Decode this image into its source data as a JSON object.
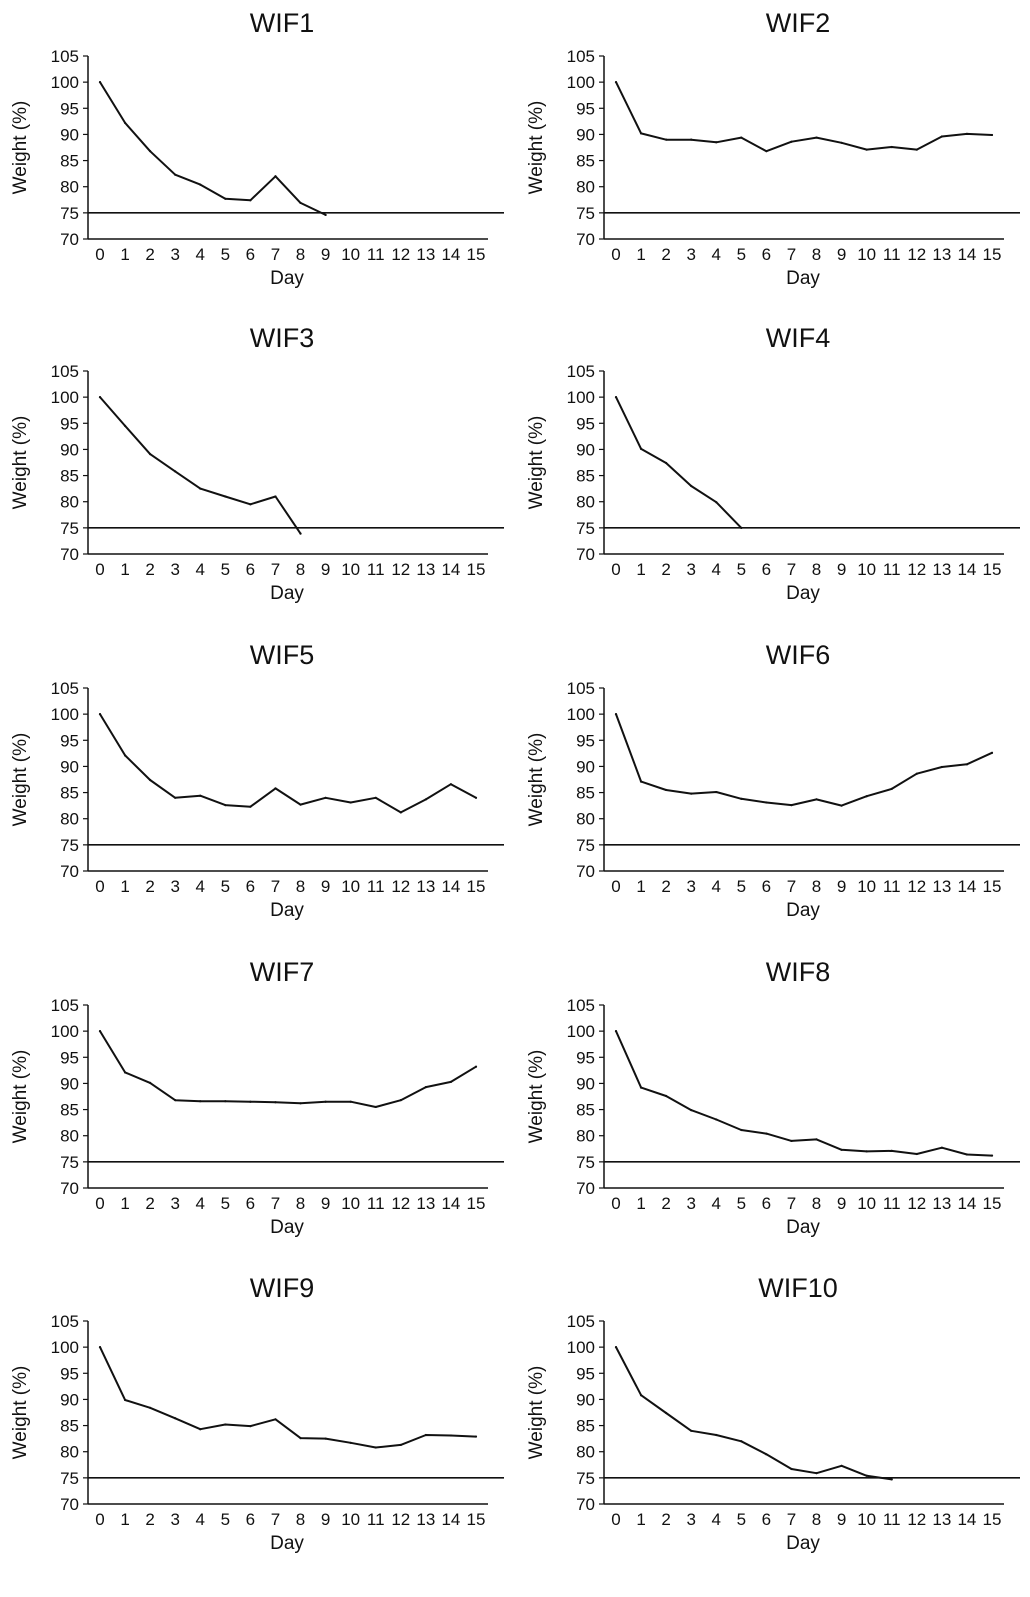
{
  "chart_data": [
    {
      "type": "line",
      "title": "WIF1",
      "xlabel": "Day",
      "ylabel": "Weight (%)",
      "x": [
        0,
        1,
        2,
        3,
        4,
        5,
        6,
        7,
        8,
        9
      ],
      "series": [
        {
          "values": [
            100,
            92.2,
            86.8,
            82.3,
            80.4,
            77.7,
            77.4,
            82,
            76.9,
            74.6
          ]
        }
      ],
      "reference_line": 75,
      "xticks": [
        0,
        1,
        2,
        3,
        4,
        5,
        6,
        7,
        8,
        9,
        10,
        11,
        12,
        13,
        14,
        15
      ],
      "yticks": [
        70,
        75,
        80,
        85,
        90,
        95,
        100,
        105
      ],
      "xlim": [
        0,
        15
      ],
      "ylim": [
        70,
        105
      ],
      "grid": false,
      "line_color": "#111111"
    },
    {
      "type": "line",
      "title": "WIF2",
      "xlabel": "Day",
      "ylabel": "Weight (%)",
      "x": [
        0,
        1,
        2,
        3,
        4,
        5,
        6,
        7,
        8,
        9,
        10,
        11,
        12,
        13,
        14,
        15
      ],
      "series": [
        {
          "values": [
            100,
            90.2,
            89,
            89,
            88.5,
            89.4,
            86.8,
            88.6,
            89.4,
            88.4,
            87.1,
            87.6,
            87.1,
            89.6,
            90.1,
            89.9
          ]
        }
      ],
      "reference_line": 75,
      "xticks": [
        0,
        1,
        2,
        3,
        4,
        5,
        6,
        7,
        8,
        9,
        10,
        11,
        12,
        13,
        14,
        15
      ],
      "yticks": [
        70,
        75,
        80,
        85,
        90,
        95,
        100,
        105
      ],
      "xlim": [
        0,
        15
      ],
      "ylim": [
        70,
        105
      ],
      "grid": false,
      "line_color": "#111111"
    },
    {
      "type": "line",
      "title": "WIF3",
      "xlabel": "Day",
      "ylabel": "Weight (%)",
      "x": [
        0,
        1,
        2,
        3,
        4,
        5,
        6,
        7,
        8
      ],
      "series": [
        {
          "values": [
            100,
            94.5,
            89.1,
            85.8,
            82.5,
            81,
            79.5,
            81,
            73.9
          ]
        }
      ],
      "reference_line": 75,
      "xticks": [
        0,
        1,
        2,
        3,
        4,
        5,
        6,
        7,
        8,
        9,
        10,
        11,
        12,
        13,
        14,
        15
      ],
      "yticks": [
        70,
        75,
        80,
        85,
        90,
        95,
        100,
        105
      ],
      "xlim": [
        0,
        15
      ],
      "ylim": [
        70,
        105
      ],
      "grid": false,
      "line_color": "#111111"
    },
    {
      "type": "line",
      "title": "WIF4",
      "xlabel": "Day",
      "ylabel": "Weight (%)",
      "x": [
        0,
        1,
        2,
        3,
        4,
        5
      ],
      "series": [
        {
          "values": [
            100,
            90.1,
            87.4,
            83,
            79.9,
            75
          ]
        }
      ],
      "reference_line": 75,
      "xticks": [
        0,
        1,
        2,
        3,
        4,
        5,
        6,
        7,
        8,
        9,
        10,
        11,
        12,
        13,
        14,
        15
      ],
      "yticks": [
        70,
        75,
        80,
        85,
        90,
        95,
        100,
        105
      ],
      "xlim": [
        0,
        15
      ],
      "ylim": [
        70,
        105
      ],
      "grid": false,
      "line_color": "#111111"
    },
    {
      "type": "line",
      "title": "WIF5",
      "xlabel": "Day",
      "ylabel": "Weight (%)",
      "x": [
        0,
        1,
        2,
        3,
        4,
        5,
        6,
        7,
        8,
        9,
        10,
        11,
        12,
        13,
        14,
        15
      ],
      "series": [
        {
          "values": [
            100,
            92.1,
            87.4,
            84,
            84.4,
            82.6,
            82.3,
            85.8,
            82.7,
            84,
            83.1,
            84,
            81.2,
            83.7,
            86.6,
            84
          ]
        }
      ],
      "reference_line": 75,
      "xticks": [
        0,
        1,
        2,
        3,
        4,
        5,
        6,
        7,
        8,
        9,
        10,
        11,
        12,
        13,
        14,
        15
      ],
      "yticks": [
        70,
        75,
        80,
        85,
        90,
        95,
        100,
        105
      ],
      "xlim": [
        0,
        15
      ],
      "ylim": [
        70,
        105
      ],
      "grid": false,
      "line_color": "#111111"
    },
    {
      "type": "line",
      "title": "WIF6",
      "xlabel": "Day",
      "ylabel": "Weight (%)",
      "x": [
        0,
        1,
        2,
        3,
        4,
        5,
        6,
        7,
        8,
        9,
        10,
        11,
        12,
        13,
        14,
        15
      ],
      "series": [
        {
          "values": [
            100,
            87.1,
            85.5,
            84.8,
            85.1,
            83.8,
            83.1,
            82.6,
            83.7,
            82.5,
            84.3,
            85.7,
            88.6,
            89.9,
            90.4,
            92.6
          ]
        }
      ],
      "reference_line": 75,
      "xticks": [
        0,
        1,
        2,
        3,
        4,
        5,
        6,
        7,
        8,
        9,
        10,
        11,
        12,
        13,
        14,
        15
      ],
      "yticks": [
        70,
        75,
        80,
        85,
        90,
        95,
        100,
        105
      ],
      "xlim": [
        0,
        15
      ],
      "ylim": [
        70,
        105
      ],
      "grid": false,
      "line_color": "#111111"
    },
    {
      "type": "line",
      "title": "WIF7",
      "xlabel": "Day",
      "ylabel": "Weight (%)",
      "x": [
        0,
        1,
        2,
        3,
        4,
        5,
        6,
        7,
        8,
        9,
        10,
        11,
        12,
        13,
        14,
        15
      ],
      "series": [
        {
          "values": [
            100,
            92.1,
            90.1,
            86.8,
            86.6,
            86.6,
            86.5,
            86.4,
            86.2,
            86.5,
            86.5,
            85.5,
            86.8,
            89.3,
            90.3,
            93.2
          ]
        }
      ],
      "reference_line": 75,
      "xticks": [
        0,
        1,
        2,
        3,
        4,
        5,
        6,
        7,
        8,
        9,
        10,
        11,
        12,
        13,
        14,
        15
      ],
      "yticks": [
        70,
        75,
        80,
        85,
        90,
        95,
        100,
        105
      ],
      "xlim": [
        0,
        15
      ],
      "ylim": [
        70,
        105
      ],
      "grid": false,
      "line_color": "#111111"
    },
    {
      "type": "line",
      "title": "WIF8",
      "xlabel": "Day",
      "ylabel": "Weight (%)",
      "x": [
        0,
        1,
        2,
        3,
        4,
        5,
        6,
        7,
        8,
        9,
        10,
        11,
        12,
        13,
        14,
        15
      ],
      "series": [
        {
          "values": [
            100,
            89.2,
            87.6,
            84.9,
            83.1,
            81.1,
            80.4,
            79,
            79.3,
            77.3,
            77,
            77.1,
            76.5,
            77.7,
            76.4,
            76.2
          ]
        }
      ],
      "reference_line": 75,
      "xticks": [
        0,
        1,
        2,
        3,
        4,
        5,
        6,
        7,
        8,
        9,
        10,
        11,
        12,
        13,
        14,
        15
      ],
      "yticks": [
        70,
        75,
        80,
        85,
        90,
        95,
        100,
        105
      ],
      "xlim": [
        0,
        15
      ],
      "ylim": [
        70,
        105
      ],
      "grid": false,
      "line_color": "#111111"
    },
    {
      "type": "line",
      "title": "WIF9",
      "xlabel": "Day",
      "ylabel": "Weight (%)",
      "x": [
        0,
        1,
        2,
        3,
        4,
        5,
        6,
        7,
        8,
        9,
        10,
        11,
        12,
        13,
        14,
        15
      ],
      "series": [
        {
          "values": [
            100,
            89.9,
            88.4,
            86.4,
            84.3,
            85.2,
            84.9,
            86.2,
            82.6,
            82.5,
            81.7,
            80.8,
            81.3,
            83.2,
            83.1,
            82.9
          ]
        }
      ],
      "reference_line": 75,
      "xticks": [
        0,
        1,
        2,
        3,
        4,
        5,
        6,
        7,
        8,
        9,
        10,
        11,
        12,
        13,
        14,
        15
      ],
      "yticks": [
        70,
        75,
        80,
        85,
        90,
        95,
        100,
        105
      ],
      "xlim": [
        0,
        15
      ],
      "ylim": [
        70,
        105
      ],
      "grid": false,
      "line_color": "#111111"
    },
    {
      "type": "line",
      "title": "WIF10",
      "xlabel": "Day",
      "ylabel": "Weight (%)",
      "x": [
        0,
        1,
        2,
        3,
        4,
        5,
        6,
        7,
        8,
        9,
        10,
        11
      ],
      "series": [
        {
          "values": [
            100,
            90.8,
            87.4,
            84,
            83.2,
            82,
            79.5,
            76.7,
            75.9,
            77.3,
            75.4,
            74.7
          ]
        }
      ],
      "reference_line": 75,
      "xticks": [
        0,
        1,
        2,
        3,
        4,
        5,
        6,
        7,
        8,
        9,
        10,
        11,
        12,
        13,
        14,
        15
      ],
      "yticks": [
        70,
        75,
        80,
        85,
        90,
        95,
        100,
        105
      ],
      "xlim": [
        0,
        15
      ],
      "ylim": [
        70,
        105
      ],
      "grid": false,
      "line_color": "#111111"
    }
  ]
}
